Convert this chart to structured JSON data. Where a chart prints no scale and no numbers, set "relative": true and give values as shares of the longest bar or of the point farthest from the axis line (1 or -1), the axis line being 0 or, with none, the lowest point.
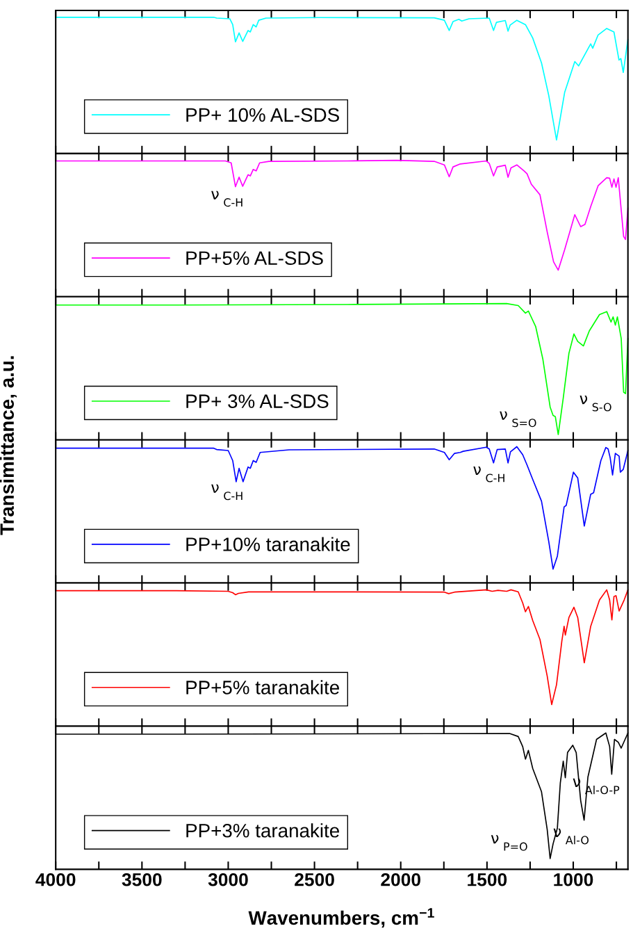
{
  "chart_data": [
    {
      "type": "line",
      "relative": true,
      "xlim": [
        4000,
        683
      ],
      "xticks": [
        4000,
        {
          "value": 3750,
          "label": null
        },
        3500,
        {
          "value": 3250,
          "label": null
        },
        3000,
        {
          "value": 2750,
          "label": null
        },
        2500,
        {
          "value": 2250,
          "label": null
        },
        2000,
        {
          "value": 1750,
          "label": null
        },
        1500,
        {
          "value": 1250,
          "label": null
        },
        1000,
        {
          "value": 750,
          "label": null
        }
      ],
      "tick_labels": false,
      "legend": "bottom left",
      "grid": false,
      "marker": "none",
      "series": [
        {
          "name": "PP+ 10% AL-SDS",
          "color": "#00ffff",
          "x": [
            4000,
            3319,
            3084,
            3067,
            2991,
            2974,
            2958,
            2937,
            2916,
            2885,
            2872,
            2855,
            2838,
            2823,
            2781,
            2478,
            1806,
            1747,
            1719,
            1697,
            1663,
            1646,
            1604,
            1487,
            1462,
            1445,
            1394,
            1378,
            1366,
            1327,
            1277,
            1235,
            1184,
            1142,
            1097,
            1050,
            991,
            969,
            899,
            887,
            856,
            806,
            764,
            735,
            724,
            710,
            683
          ],
          "values": [
            1.0,
            1.0,
            1.0,
            0.994,
            0.989,
            0.946,
            0.82,
            0.885,
            0.823,
            0.903,
            0.892,
            0.946,
            0.929,
            0.978,
            0.994,
            0.998,
            0.996,
            0.978,
            0.903,
            0.968,
            0.985,
            0.972,
            0.989,
            0.994,
            0.903,
            0.963,
            0.976,
            0.898,
            0.942,
            0.978,
            0.946,
            0.848,
            0.665,
            0.426,
            0.1,
            0.448,
            0.675,
            0.643,
            0.805,
            0.773,
            0.87,
            0.918,
            0.892,
            0.686,
            0.697,
            0.595,
            0.838
          ]
        }
      ]
    },
    {
      "type": "line",
      "relative": true,
      "xlim": [
        4000,
        683
      ],
      "xticks": [
        4000,
        {
          "value": 3750,
          "label": null
        },
        3500,
        {
          "value": 3250,
          "label": null
        },
        3000,
        {
          "value": 2750,
          "label": null
        },
        2500,
        {
          "value": 2250,
          "label": null
        },
        2000,
        {
          "value": 1750,
          "label": null
        },
        1500,
        {
          "value": 1250,
          "label": null
        },
        1000,
        {
          "value": 750,
          "label": null
        }
      ],
      "tick_labels": false,
      "legend": "bottom left",
      "grid": false,
      "marker": "none",
      "series": [
        {
          "name": "PP+5% AL-SDS",
          "color": "#ff00ff",
          "x": [
            4000,
            3319,
            3016,
            2983,
            2958,
            2937,
            2916,
            2885,
            2872,
            2855,
            2838,
            2818,
            2764,
            2310,
            2025,
            1806,
            1747,
            1719,
            1697,
            1655,
            1504,
            1487,
            1462,
            1441,
            1394,
            1378,
            1361,
            1327,
            1285,
            1268,
            1243,
            1193,
            1151,
            1114,
            1087,
            1050,
            991,
            957,
            932,
            899,
            856,
            806,
            789,
            776,
            764,
            752,
            739,
            708,
            697,
            683
          ],
          "values": [
            0.996,
            0.996,
            0.996,
            0.982,
            0.807,
            0.877,
            0.81,
            0.895,
            0.886,
            0.934,
            0.923,
            0.982,
            0.993,
            0.996,
            1.0,
            0.993,
            0.967,
            0.88,
            0.952,
            0.974,
            0.996,
            0.978,
            0.886,
            0.952,
            0.965,
            0.876,
            0.945,
            0.967,
            0.923,
            0.902,
            0.825,
            0.748,
            0.475,
            0.256,
            0.195,
            0.344,
            0.602,
            0.514,
            0.53,
            0.661,
            0.814,
            0.873,
            0.869,
            0.803,
            0.864,
            0.803,
            0.873,
            0.442,
            0.42,
            0.65
          ]
        }
      ],
      "annotations": [
        "ν$_{C-H}$"
      ]
    },
    {
      "type": "line",
      "relative": true,
      "xlim": [
        4000,
        683
      ],
      "xticks": [
        4000,
        {
          "value": 3750,
          "label": null
        },
        3500,
        {
          "value": 3250,
          "label": null
        },
        3000,
        {
          "value": 2750,
          "label": null
        },
        2500,
        {
          "value": 2250,
          "label": null
        },
        2000,
        {
          "value": 1750,
          "label": null
        },
        1500,
        {
          "value": 1250,
          "label": null
        },
        1000,
        {
          "value": 750,
          "label": null
        }
      ],
      "tick_labels": false,
      "legend": "bottom left",
      "grid": false,
      "marker": "none",
      "series": [
        {
          "name": "PP+ 3% AL-SDS",
          "color": "#00ff00",
          "x": [
            4000,
            3319,
            2310,
            1386,
            1319,
            1277,
            1260,
            1218,
            1176,
            1134,
            1117,
            1104,
            1087,
            1058,
            1025,
            996,
            974,
            941,
            907,
            848,
            806,
            781,
            769,
            756,
            744,
            722,
            708,
            697,
            683
          ],
          "values": [
            0.989,
            0.989,
            0.993,
            1.0,
            0.985,
            0.93,
            0.945,
            0.832,
            0.591,
            0.241,
            0.179,
            0.171,
            0.039,
            0.306,
            0.635,
            0.777,
            0.722,
            0.689,
            0.799,
            0.919,
            0.941,
            0.864,
            0.902,
            0.842,
            0.902,
            0.744,
            0.35,
            0.339,
            0.744
          ]
        }
      ],
      "annotations": [
        "ν$_{S=O}$",
        "ν$_{S-O}$"
      ]
    },
    {
      "type": "line",
      "relative": true,
      "ylabel": "Transimittance, a.u.",
      "xlim": [
        4000,
        683
      ],
      "xticks": [
        4000,
        {
          "value": 3750,
          "label": null
        },
        3500,
        {
          "value": 3250,
          "label": null
        },
        3000,
        {
          "value": 2750,
          "label": null
        },
        2500,
        {
          "value": 2250,
          "label": null
        },
        2000,
        {
          "value": 1750,
          "label": null
        },
        1500,
        {
          "value": 1250,
          "label": null
        },
        1000,
        {
          "value": 750,
          "label": null
        }
      ],
      "tick_labels": false,
      "legend": "bottom left",
      "grid": false,
      "marker": "none",
      "series": [
        {
          "name": "PP+10% taranakite",
          "color": "#0000ff",
          "x": [
            4000,
            3319,
            3084,
            3067,
            3000,
            2974,
            2954,
            2937,
            2914,
            2885,
            2872,
            2855,
            2838,
            2815,
            2647,
            1806,
            1747,
            1719,
            1688,
            1655,
            1638,
            1504,
            1487,
            1462,
            1441,
            1394,
            1378,
            1364,
            1327,
            1293,
            1268,
            1235,
            1184,
            1142,
            1117,
            1092,
            1053,
            1041,
            999,
            974,
            936,
            899,
            882,
            840,
            811,
            798,
            786,
            772,
            756,
            734,
            727,
            710,
            683
          ],
          "values": [
            0.989,
            0.989,
            0.989,
            0.979,
            0.972,
            0.898,
            0.743,
            0.841,
            0.743,
            0.851,
            0.841,
            0.898,
            0.885,
            0.958,
            0.977,
            0.983,
            0.958,
            0.904,
            0.951,
            0.958,
            0.966,
            0.996,
            0.983,
            0.881,
            0.979,
            0.983,
            0.881,
            0.962,
            1.0,
            0.941,
            0.866,
            0.76,
            0.6,
            0.304,
            0.102,
            0.197,
            0.558,
            0.569,
            0.813,
            0.77,
            0.418,
            0.651,
            0.662,
            0.898,
            0.994,
            0.983,
            0.919,
            0.792,
            0.951,
            0.93,
            0.813,
            0.834,
            0.972
          ]
        }
      ],
      "annotations": [
        "ν$_{C-H}$",
        "ν$_{C-H}$"
      ]
    },
    {
      "type": "line",
      "relative": true,
      "xlim": [
        4000,
        683
      ],
      "xticks": [
        4000,
        {
          "value": 3750,
          "label": null
        },
        3500,
        {
          "value": 3250,
          "label": null
        },
        3000,
        {
          "value": 2750,
          "label": null
        },
        2500,
        {
          "value": 2250,
          "label": null
        },
        2000,
        {
          "value": 1750,
          "label": null
        },
        1500,
        {
          "value": 1250,
          "label": null
        },
        1000,
        {
          "value": 750,
          "label": null
        }
      ],
      "tick_labels": false,
      "legend": "bottom left",
      "grid": false,
      "marker": "none",
      "series": [
        {
          "name": "PP+5% taranakite",
          "color": "#ff0000",
          "x": [
            4000,
            3319,
            3000,
            2974,
            2958,
            2941,
            2882,
            2310,
            1747,
            1722,
            1688,
            1504,
            1470,
            1436,
            1386,
            1361,
            1319,
            1293,
            1277,
            1260,
            1235,
            1193,
            1151,
            1125,
            1097,
            1066,
            1053,
            1046,
            1025,
            996,
            974,
            936,
            899,
            848,
            806,
            789,
            776,
            764,
            752,
            734,
            705,
            683
          ],
          "values": [
            0.994,
            0.994,
            0.989,
            0.979,
            0.964,
            0.974,
            0.985,
            0.985,
            0.983,
            0.972,
            0.983,
            1.0,
            0.989,
            0.996,
            0.989,
            1.0,
            0.985,
            0.904,
            0.839,
            0.878,
            0.775,
            0.636,
            0.368,
            0.158,
            0.304,
            0.625,
            0.732,
            0.668,
            0.797,
            0.872,
            0.797,
            0.465,
            0.732,
            0.925,
            1.0,
            0.925,
            0.779,
            0.951,
            0.957,
            0.844,
            0.925,
            1.0
          ]
        }
      ]
    },
    {
      "type": "line",
      "relative": true,
      "xlabel": "Wavenumbers, cm$^{−1}$",
      "xlim": [
        4000,
        683
      ],
      "xticks": [
        4000,
        {
          "value": 3750,
          "label": null
        },
        3500,
        {
          "value": 3250,
          "label": null
        },
        3000,
        {
          "value": 2750,
          "label": null
        },
        2500,
        {
          "value": 2250,
          "label": null
        },
        2000,
        {
          "value": 1750,
          "label": null
        },
        1500,
        {
          "value": 1250,
          "label": null
        },
        1000,
        {
          "value": 750,
          "label": null
        }
      ],
      "tick_labels": "x",
      "legend": "bottom left",
      "grid": false,
      "marker": "none",
      "series": [
        {
          "name": "PP+3% taranakite",
          "color": "#000000",
          "x": [
            4000,
            3319,
            1369,
            1319,
            1293,
            1277,
            1260,
            1235,
            1184,
            1151,
            1134,
            1117,
            1092,
            1075,
            1058,
            1046,
            1033,
            1003,
            983,
            957,
            937,
            915,
            865,
            811,
            789,
            777,
            761,
            739,
            722,
            683
          ],
          "values": [
            0.991,
            0.991,
            0.996,
            0.974,
            0.9,
            0.808,
            0.872,
            0.74,
            0.569,
            0.292,
            0.079,
            0.186,
            0.303,
            0.633,
            0.793,
            0.672,
            0.857,
            0.91,
            0.857,
            0.505,
            0.36,
            0.676,
            0.953,
            1.0,
            0.9,
            0.697,
            0.953,
            0.932,
            0.889,
            1.0
          ]
        }
      ],
      "annotations": [
        "ν$_{P=O}$",
        "ν$_{Al-O}$",
        "ν$_{Al-O-P}$"
      ]
    }
  ]
}
